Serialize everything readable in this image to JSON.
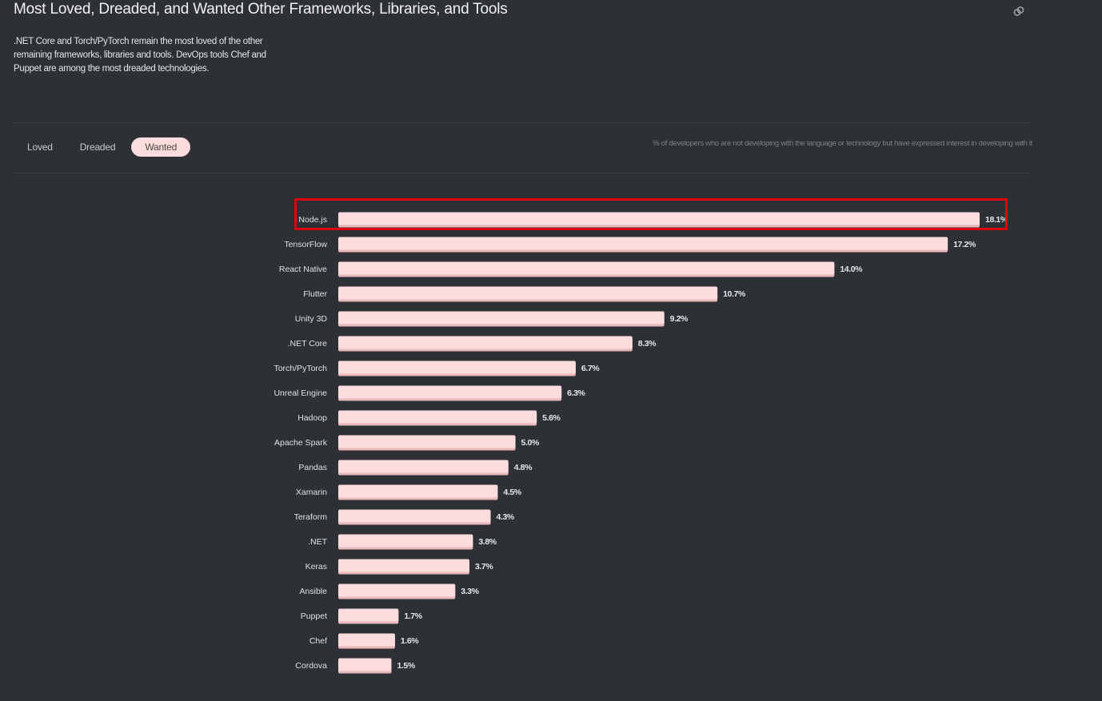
{
  "header": {
    "title": "Most Loved, Dreaded, and Wanted Other Frameworks, Libraries, and Tools",
    "description": ".NET Core and Torch/PyTorch remain the most loved of the other remaining frameworks, libraries and tools. DevOps tools Chef and Puppet are among the most dreaded technologies.",
    "link_icon": "link-icon"
  },
  "tabs": [
    {
      "label": "Loved",
      "active": false
    },
    {
      "label": "Dreaded",
      "active": false
    },
    {
      "label": "Wanted",
      "active": true
    }
  ],
  "note": "% of developers who are not developing with the language or technology but have expressed interest in developing with it",
  "colors": {
    "background": "#2d3035",
    "bar": "#fcdcdc",
    "bar_shadow": "#e9b8bb",
    "highlight": "#e0000b"
  },
  "highlighted_category": "Node.js",
  "chart_data": {
    "type": "bar",
    "orientation": "horizontal",
    "title": "Most Loved, Dreaded, and Wanted Other Frameworks, Libraries, and Tools",
    "subtitle": "Wanted",
    "xlabel": "% of developers who are not developing with the language or technology but have expressed interest in developing with it",
    "ylabel": "",
    "xlim": [
      0,
      18.1
    ],
    "grid": false,
    "legend": "none",
    "value_suffix": "%",
    "categories": [
      "Node.js",
      "TensorFlow",
      "React Native",
      "Flutter",
      "Unity 3D",
      ".NET Core",
      "Torch/PyTorch",
      "Unreal Engine",
      "Hadoop",
      "Apache Spark",
      "Pandas",
      "Xamarin",
      "Teraform",
      ".NET",
      "Keras",
      "Ansible",
      "Puppet",
      "Chef",
      "Cordova"
    ],
    "values": [
      18.1,
      17.2,
      14.0,
      10.7,
      9.2,
      8.3,
      6.7,
      6.3,
      5.6,
      5.0,
      4.8,
      4.5,
      4.3,
      3.8,
      3.7,
      3.3,
      1.7,
      1.6,
      1.5
    ],
    "labels": [
      "18.1%",
      "17.2%",
      "14.0%",
      "10.7%",
      "9.2%",
      "8.3%",
      "6.7%",
      "6.3%",
      "5.6%",
      "5.0%",
      "4.8%",
      "4.5%",
      "4.3%",
      "3.8%",
      "3.7%",
      "3.3%",
      "1.7%",
      "1.6%",
      "1.5%"
    ]
  }
}
